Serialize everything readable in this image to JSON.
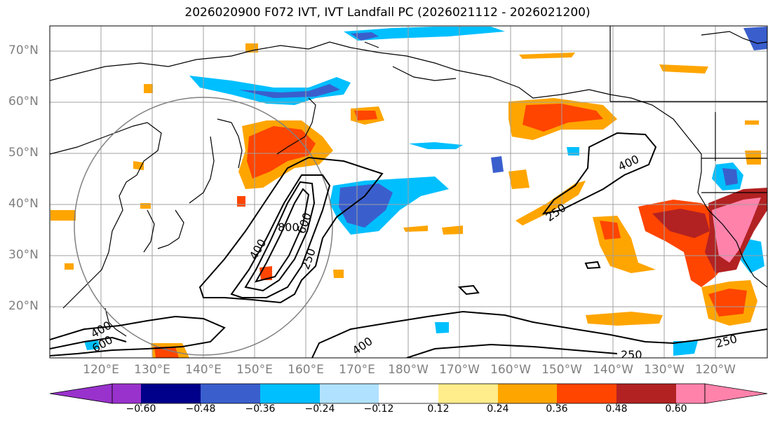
{
  "title": "2026020900 F072 IVT, IVT Landfall PC (2026021112 - 2026021200)",
  "lat_labels": [
    "70°N",
    "60°N",
    "50°N",
    "40°N",
    "30°N",
    "20°N"
  ],
  "lon_labels": [
    "120°E",
    "130°E",
    "140°E",
    "150°E",
    "160°E",
    "170°E",
    "180°W",
    "170°W",
    "160°W",
    "150°W",
    "140°W",
    "130°W",
    "120°W"
  ],
  "contour_labels": [
    "400",
    "600",
    "800",
    "250",
    "400",
    "250",
    "400",
    "600",
    "400",
    "250",
    "250"
  ],
  "colorbar": {
    "ticks": [
      "−0.60",
      "−0.48",
      "−0.36",
      "−0.24",
      "−0.12",
      "0.12",
      "0.24",
      "0.36",
      "0.48",
      "0.60"
    ],
    "colors": [
      "#9932cc",
      "#00008b",
      "#3a5fcd",
      "#00bfff",
      "#b0e2ff",
      "#ffffff",
      "#ffec8b",
      "#ffa500",
      "#ff4500",
      "#b22222",
      "#ff82ab"
    ]
  },
  "colors": {
    "grid": "#a0a0a0",
    "coast": "#000000",
    "label": "#808080"
  }
}
